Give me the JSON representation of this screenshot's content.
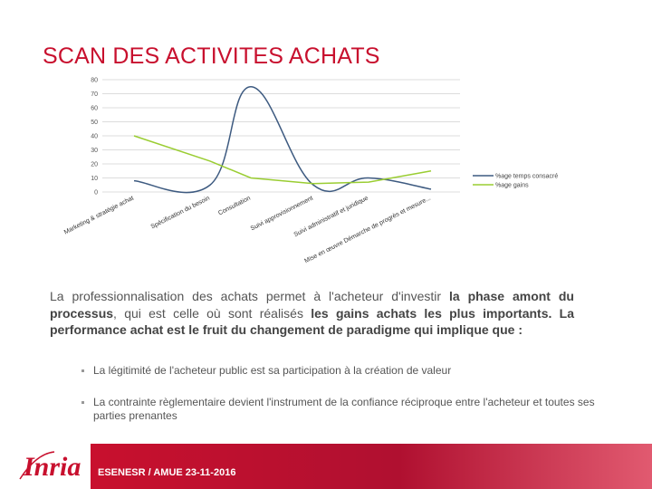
{
  "slide": {
    "title": "SCAN DES ACTIVITES ACHATS",
    "paragraph": {
      "part1": "La professionnalisation des achats permet à l'acheteur d'investir ",
      "bold1": "la phase amont du processus",
      "part2": ", qui est celle où sont réalisés ",
      "bold2": "les gains achats les plus importants. La performance achat est le fruit du changement de paradigme qui implique que :"
    },
    "bullets": [
      "La légitimité de l'acheteur public est sa participation à la création de valeur",
      "La contrainte règlementaire devient l'instrument de la confiance réciproque entre l'acheteur et toutes ses parties prenantes"
    ],
    "footer": "ESENESR / AMUE 23-11-2016",
    "logo_text": "Inria",
    "colors": {
      "accent": "#c8102e",
      "series_time": "#3d5a80",
      "series_gain": "#9acd32"
    }
  },
  "chart_data": {
    "type": "line",
    "categories": [
      "Marketing & stratégie achat",
      "Spécification du besoin",
      "Consultation",
      "Suivi approvisionnement",
      "Suivi administratif et juridique",
      "Mise en œuvre Démarche de progrès et mesure..."
    ],
    "series": [
      {
        "name": "%age temps consacré",
        "values": [
          8,
          5,
          75,
          5,
          10,
          2
        ]
      },
      {
        "name": "%age gains",
        "values": [
          40,
          22,
          10,
          6,
          7,
          15
        ]
      }
    ],
    "yticks": [
      "0",
      "10",
      "20",
      "30",
      "40",
      "50",
      "60",
      "70",
      "80"
    ],
    "ylim": [
      0,
      80
    ],
    "grid": true,
    "legend": "right"
  }
}
